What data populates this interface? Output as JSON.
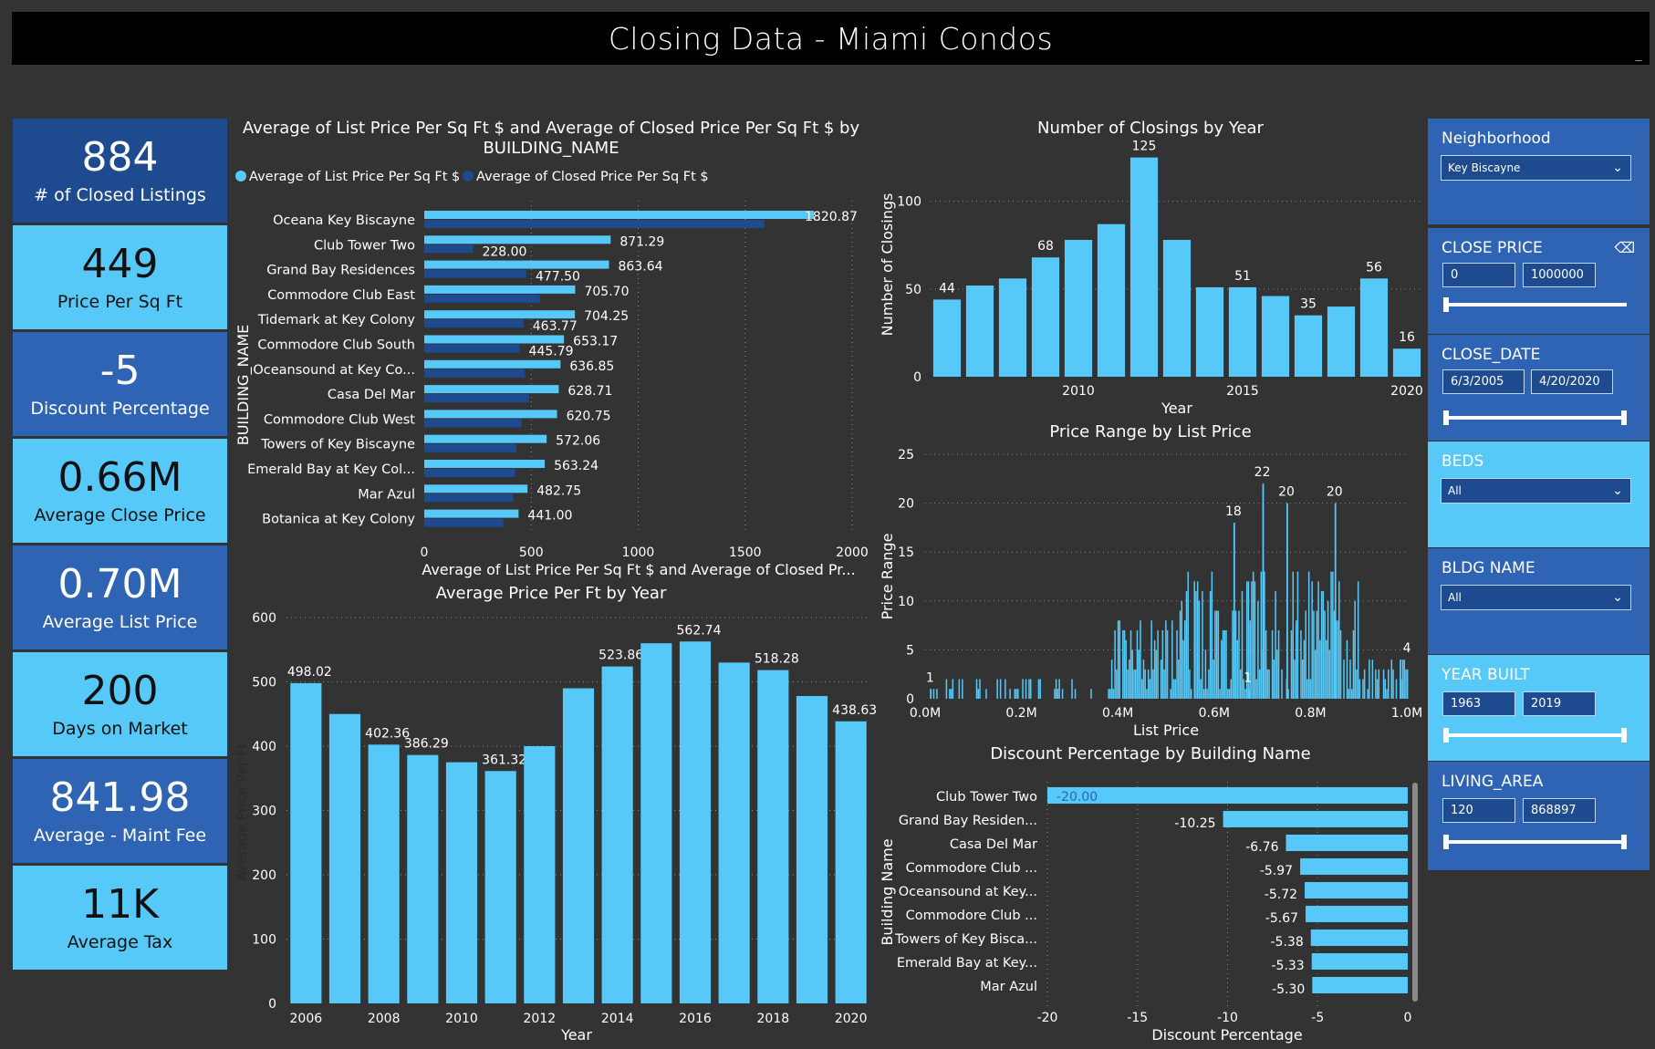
{
  "title": "Closing Data - Miami Condos",
  "kpis": [
    {
      "value": "884",
      "label": "# of Closed Listings"
    },
    {
      "value": "449",
      "label": "Price Per Sq Ft"
    },
    {
      "value": "-5",
      "label": "Discount Percentage"
    },
    {
      "value": "0.66M",
      "label": "Average Close Price"
    },
    {
      "value": "0.70M",
      "label": "Average List Price"
    },
    {
      "value": "200",
      "label": "Days on Market"
    },
    {
      "value": "841.98",
      "label": "Average - Maint Fee"
    },
    {
      "value": "11K",
      "label": "Average Tax"
    }
  ],
  "slicers": {
    "neighborhood": {
      "label": "Neighborhood",
      "value": "Key Biscayne"
    },
    "close_price": {
      "label": "CLOSE PRICE",
      "min": "0",
      "max": "1000000"
    },
    "close_date": {
      "label": "CLOSE_DATE",
      "min": "6/3/2005",
      "max": "4/20/2020"
    },
    "beds": {
      "label": "BEDS",
      "value": "All"
    },
    "bldg_name": {
      "label": "BLDG NAME",
      "value": "All"
    },
    "year_built": {
      "label": "YEAR BUILT",
      "min": "1963",
      "max": "2019"
    },
    "living_area": {
      "label": "LIVING_AREA",
      "min": "120",
      "max": "868897"
    }
  },
  "colors": {
    "light": "#56c9f8",
    "dark": "#1e4b8f",
    "bg": "#333333"
  },
  "chart_data": [
    {
      "id": "building_ppsf",
      "type": "bar",
      "orientation": "horizontal",
      "title": "Average of List Price Per Sq Ft $ and Average of Closed Price Per Sq Ft $ by BUILDING_NAME",
      "xlabel": "Average of List Price Per Sq Ft $ and Average of Closed Pr...",
      "ylabel": "BUILDING_NAME",
      "xlim": [
        0,
        2000
      ],
      "xticks": [
        "0",
        "500",
        "1000",
        "1500",
        "2000"
      ],
      "legend": [
        "Average of List Price Per Sq Ft $",
        "Average of Closed Price Per Sq Ft $"
      ],
      "categories": [
        "Oceana Key Biscayne",
        "Club Tower Two",
        "Grand Bay Residences",
        "Commodore Club East",
        "Tidemark at Key Colony",
        "Commodore Club South",
        "Oceansound at Key Co...",
        "Casa Del Mar",
        "Commodore Club West",
        "Towers of Key Biscayne",
        "Emerald Bay at Key Col...",
        "Mar Azul",
        "Botanica at Key Colony"
      ],
      "series": [
        {
          "name": "Average of List Price Per Sq Ft $",
          "values": [
            1820.87,
            871.29,
            863.64,
            705.7,
            704.25,
            653.17,
            636.85,
            628.71,
            620.75,
            572.06,
            563.24,
            482.75,
            441.0
          ]
        },
        {
          "name": "Average of Closed Price Per Sq Ft $",
          "values": [
            1590,
            228.0,
            477.5,
            540,
            463.77,
            445.79,
            470,
            490,
            455,
            430,
            425,
            415,
            370
          ]
        }
      ],
      "labels_list": [
        "1820.87",
        "871.29",
        "863.64",
        "705.70",
        "704.25",
        "653.17",
        "636.85",
        "628.71",
        "620.75",
        "572.06",
        "563.24",
        "482.75",
        "441.00"
      ],
      "labels_closed": [
        "",
        "228.00",
        "477.50",
        "",
        "463.77",
        "445.79",
        "",
        "",
        "",
        "",
        "",
        "",
        ""
      ]
    },
    {
      "id": "closings_by_year",
      "type": "bar",
      "title": "Number of Closings by Year",
      "xlabel": "Year",
      "ylabel": "Number of Closings",
      "ylim": [
        0,
        130
      ],
      "yticks": [
        0,
        50,
        100
      ],
      "x": [
        2006,
        2007,
        2008,
        2009,
        2010,
        2011,
        2012,
        2013,
        2014,
        2015,
        2016,
        2017,
        2018,
        2019,
        2020
      ],
      "xticks": [
        2010,
        2015,
        2020
      ],
      "values": [
        44,
        52,
        56,
        68,
        78,
        87,
        125,
        78,
        51,
        51,
        46,
        35,
        40,
        56,
        16
      ],
      "data_labels": {
        "2006": "44",
        "2009": "68",
        "2012": "125",
        "2015": "51",
        "2017": "35",
        "2019": "56",
        "2020": "16"
      }
    },
    {
      "id": "price_range",
      "type": "bar",
      "title": "Price Range by List Price",
      "xlabel": "List Price",
      "ylabel": "Price Range",
      "ylim": [
        0,
        25
      ],
      "yticks": [
        0,
        5,
        10,
        15,
        20,
        25
      ],
      "xlim": [
        0,
        1000000
      ],
      "xticks": [
        "0.0M",
        "0.2M",
        "0.4M",
        "0.6M",
        "0.8M",
        "1.0M"
      ],
      "annotations": [
        {
          "x": 10000,
          "y": 1,
          "label": "1"
        },
        {
          "x": 640000,
          "y": 18,
          "label": "18"
        },
        {
          "x": 700000,
          "y": 22,
          "label": "22"
        },
        {
          "x": 750000,
          "y": 20,
          "label": "20"
        },
        {
          "x": 850000,
          "y": 20,
          "label": "20"
        },
        {
          "x": 670000,
          "y": 1,
          "label": "1"
        },
        {
          "x": 985000,
          "y": 4,
          "label": "4"
        }
      ]
    },
    {
      "id": "ppsf_by_year",
      "type": "bar",
      "title": "Average Price Per Ft by Year",
      "xlabel": "Year",
      "ylabel": "Average Price Per Ft",
      "ylim": [
        0,
        600
      ],
      "yticks": [
        0,
        100,
        200,
        300,
        400,
        500,
        600
      ],
      "x": [
        2006,
        2007,
        2008,
        2009,
        2010,
        2011,
        2012,
        2013,
        2014,
        2015,
        2016,
        2017,
        2018,
        2019,
        2020
      ],
      "xticks": [
        2006,
        2008,
        2010,
        2012,
        2014,
        2016,
        2018,
        2020
      ],
      "values": [
        498.02,
        450,
        402.36,
        386.29,
        375,
        361.32,
        400,
        490,
        523.86,
        560,
        562.74,
        530,
        518.28,
        478,
        438.63
      ],
      "data_labels": {
        "2006": "498.02",
        "2008": "402.36",
        "2009": "386.29",
        "2011": "361.32",
        "2014": "523.86",
        "2016": "562.74",
        "2018": "518.28",
        "2020": "438.63"
      }
    },
    {
      "id": "discount_by_building",
      "type": "bar",
      "orientation": "horizontal",
      "title": "Discount Percentage by Building Name",
      "xlabel": "Discount Percentage",
      "ylabel": "Building Name",
      "xlim": [
        -20,
        0
      ],
      "xticks": [
        "-20",
        "-15",
        "-10",
        "-5",
        "0"
      ],
      "categories": [
        "Club Tower Two",
        "Grand Bay Residen...",
        "Casa Del Mar",
        "Commodore Club ...",
        "Oceansound at Key...",
        "Commodore Club ...",
        "Towers of Key Bisca...",
        "Emerald Bay at Key...",
        "Mar Azul"
      ],
      "values": [
        -20.0,
        -10.25,
        -6.76,
        -5.97,
        -5.72,
        -5.67,
        -5.38,
        -5.33,
        -5.3
      ],
      "labels": [
        "-20.00",
        "-10.25",
        "-6.76",
        "-5.97",
        "-5.72",
        "-5.67",
        "-5.38",
        "-5.33",
        "-5.30"
      ]
    }
  ]
}
